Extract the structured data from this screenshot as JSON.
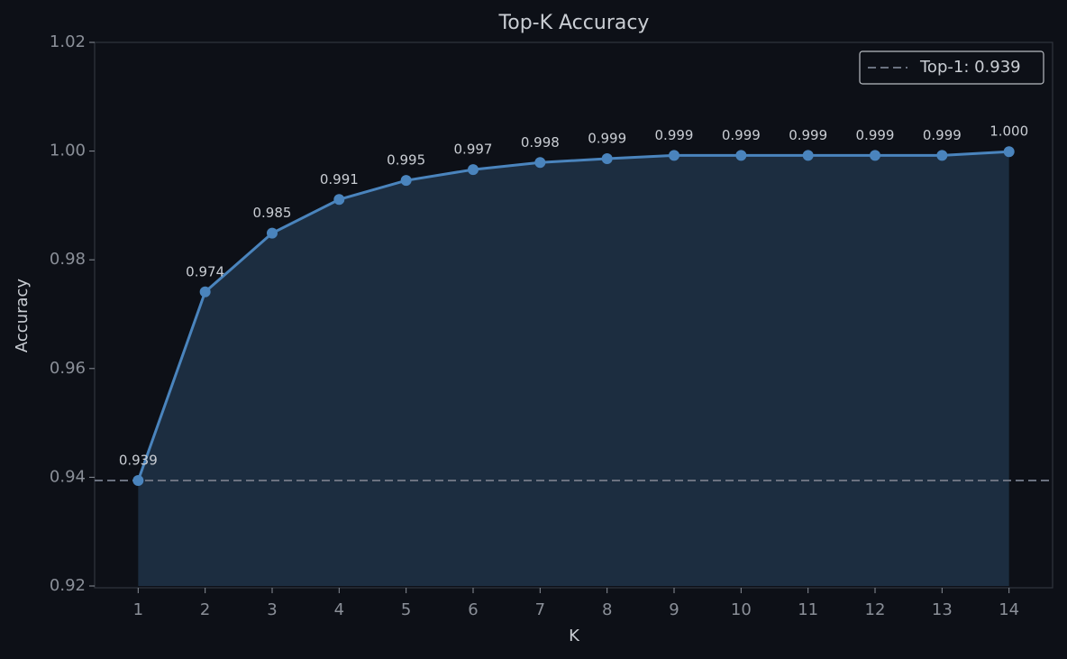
{
  "chart_data": {
    "type": "line",
    "title": "Top-K Accuracy",
    "x_label": "K",
    "y_label": "Accuracy",
    "x": [
      1,
      2,
      3,
      4,
      5,
      6,
      7,
      8,
      9,
      10,
      11,
      12,
      13,
      14
    ],
    "series": [
      {
        "name": "Top-K Accuracy",
        "color": "#4a84bd",
        "values": [
          0.9394,
          0.9741,
          0.9849,
          0.9911,
          0.9946,
          0.9966,
          0.9979,
          0.9986,
          0.9992,
          0.9992,
          0.9992,
          0.9992,
          0.9992,
          0.9999
        ],
        "value_labels": [
          "0.939",
          "0.974",
          "0.985",
          "0.991",
          "0.995",
          "0.997",
          "0.998",
          "0.999",
          "0.999",
          "0.999",
          "0.999",
          "0.999",
          "0.999",
          "1.000"
        ]
      }
    ],
    "reference_line": {
      "label": "Top-1: 0.939",
      "value": 0.9394,
      "color": "#6b7280"
    },
    "xlim": [
      0.35,
      14.65
    ],
    "xticks": [
      1,
      2,
      3,
      4,
      5,
      6,
      7,
      8,
      9,
      10,
      11,
      12,
      13,
      14
    ],
    "ylim": [
      0.92,
      1.02
    ],
    "yticks": [
      {
        "value": 0.92,
        "label": "0.92"
      },
      {
        "value": 0.94,
        "label": "0.94"
      },
      {
        "value": 0.96,
        "label": "0.96"
      },
      {
        "value": 0.98,
        "label": "0.98"
      },
      {
        "value": 1.0,
        "label": "1.00"
      },
      {
        "value": 1.02,
        "label": "1.02"
      }
    ],
    "legend": "upper right",
    "fill_area": true
  }
}
